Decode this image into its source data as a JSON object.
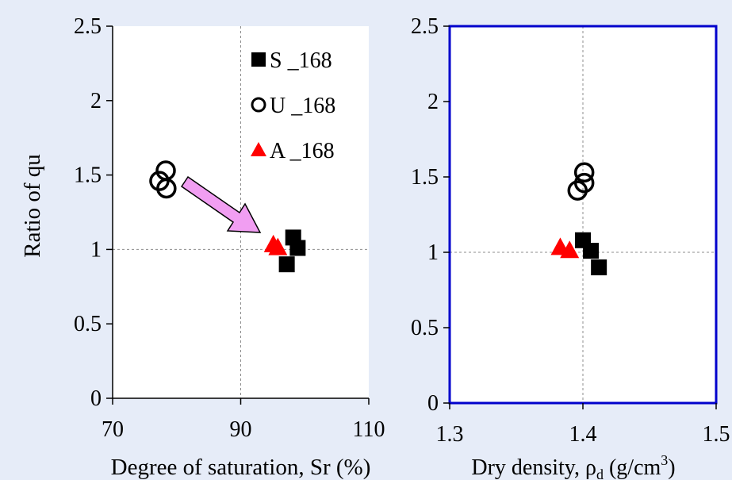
{
  "chart_data": [
    {
      "type": "scatter",
      "xlabel": "Degree of saturation, Sr (%)",
      "ylabel": "Ratio of qu",
      "xlim": [
        70,
        110
      ],
      "ylim": [
        0,
        2.5
      ],
      "xticks": [
        "70",
        "90",
        "110"
      ],
      "yticks": [
        "0",
        "0.5",
        "1",
        "1.5",
        "2",
        "2.5"
      ],
      "reference_lines": {
        "x": 90,
        "y": 1
      },
      "legend_position": "top-right",
      "annotation": "pink arrow pointing from U_168 points toward S_168 / A_168 points",
      "series": [
        {
          "name": "S _168",
          "marker": "filled-square",
          "color": "#000000",
          "points": [
            [
              98.2,
              1.08
            ],
            [
              98.9,
              1.01
            ],
            [
              97.2,
              0.9
            ]
          ]
        },
        {
          "name": "U _168",
          "marker": "open-circle",
          "color": "#000000",
          "points": [
            [
              78.3,
              1.53
            ],
            [
              77.3,
              1.46
            ],
            [
              78.4,
              1.41
            ]
          ]
        },
        {
          "name": "A _168",
          "marker": "filled-triangle",
          "color": "#ff0000",
          "points": [
            [
              95.1,
              1.04
            ],
            [
              95.8,
              1.02
            ]
          ]
        }
      ]
    },
    {
      "type": "scatter",
      "xlabel_parts": [
        "Dry density, ",
        "ρ",
        "d",
        " (g/cm",
        "3",
        ")"
      ],
      "xlim": [
        1.3,
        1.5
      ],
      "ylim": [
        0,
        2.5
      ],
      "xticks": [
        "1.3",
        "1.4",
        "1.5"
      ],
      "yticks": [
        "0",
        "0.5",
        "1",
        "1.5",
        "2",
        "2.5"
      ],
      "reference_lines": {
        "x": 1.4,
        "y": 1
      },
      "border_color": "#0000cc",
      "series": [
        {
          "name": "S _168",
          "marker": "filled-square",
          "color": "#000000",
          "points": [
            [
              1.4,
              1.08
            ],
            [
              1.406,
              1.01
            ],
            [
              1.412,
              0.9
            ]
          ]
        },
        {
          "name": "U _168",
          "marker": "open-circle",
          "color": "#000000",
          "points": [
            [
              1.401,
              1.53
            ],
            [
              1.401,
              1.46
            ],
            [
              1.396,
              1.41
            ]
          ]
        },
        {
          "name": "A _168",
          "marker": "filled-triangle",
          "color": "#ff0000",
          "points": [
            [
              1.383,
              1.04
            ],
            [
              1.39,
              1.02
            ]
          ]
        }
      ]
    }
  ]
}
